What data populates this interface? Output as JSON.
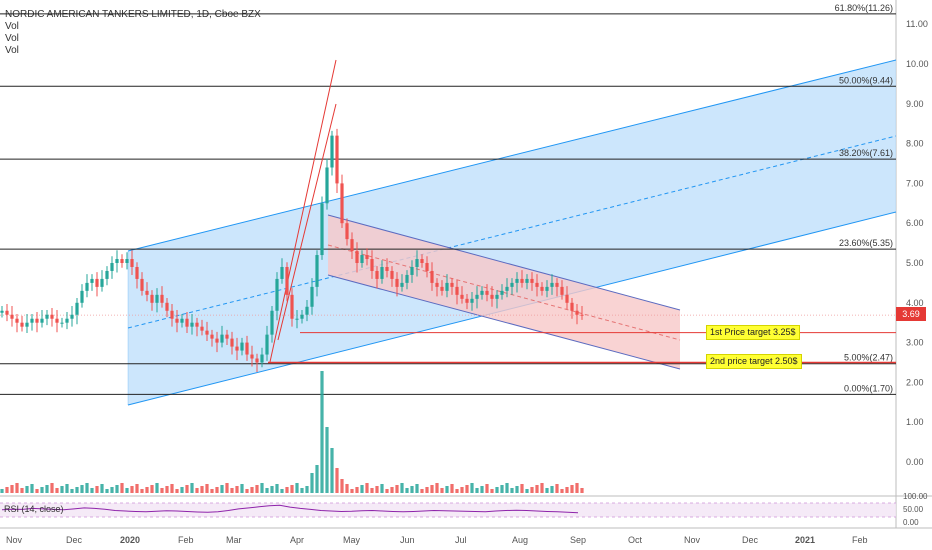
{
  "header": {
    "title": "NORDIC AMERICAN TANKERS LIMITED, 1D, Cboe BZX",
    "indicators": [
      "Vol",
      "Vol",
      "Vol"
    ]
  },
  "last_price": "3.69",
  "targets": {
    "first": "1st Price target 3.25$",
    "second": "2nd price target 2.50$"
  },
  "rsi": {
    "label": "RSI (14, close)",
    "axis_labels": [
      "100.00",
      "50.00",
      "0.00"
    ],
    "values": [
      55,
      57,
      56,
      60,
      58,
      56,
      55,
      58,
      62,
      60,
      57,
      52,
      50,
      48,
      47,
      49,
      51,
      50,
      48,
      46,
      45,
      47,
      52,
      58,
      62,
      66,
      70,
      72,
      65,
      60,
      56,
      52,
      50,
      48,
      49,
      51,
      52,
      50,
      48,
      47,
      48,
      50,
      52,
      51,
      50,
      49,
      48,
      47,
      50,
      52,
      53,
      52,
      50,
      48,
      47,
      45,
      43
    ]
  },
  "colors": {
    "up": "#26a69a",
    "down": "#ef5350",
    "channel_blue": "#2196f3",
    "channel_fill": "#bbdefb",
    "channel_red_fill": "#f8c8c8",
    "fib_line": "#222222",
    "target_line": "#e53935",
    "rsi_line": "#8e24aa"
  },
  "chart_data": {
    "type": "candlestick",
    "x_ticks": [
      "Nov",
      "Dec",
      "2020",
      "Feb",
      "Mar",
      "Apr",
      "May",
      "Jun",
      "Jul",
      "Aug",
      "Sep",
      "Oct",
      "Nov",
      "Dec",
      "2021",
      "Feb"
    ],
    "y_ticks": [
      11.0,
      10.0,
      9.0,
      8.0,
      7.0,
      6.0,
      5.0,
      4.0,
      3.0,
      2.0,
      1.0,
      0.0
    ],
    "y_tick_labels": [
      "11.00",
      "10.00",
      "9.00",
      "8.00",
      "7.00",
      "6.00",
      "5.00",
      "4.00",
      "3.00",
      "2.00",
      "1.00",
      "0.00"
    ],
    "fib_levels": [
      {
        "label": "61.80%(11.26)",
        "price": 11.26
      },
      {
        "label": "50.00%(9.44)",
        "price": 9.44
      },
      {
        "label": "38.20%(7.61)",
        "price": 7.61
      },
      {
        "label": "23.60%(5.35)",
        "price": 5.35
      },
      {
        "label": "5.00%(2.47)",
        "price": 2.47
      },
      {
        "label": "0.00%(1.70)",
        "price": 1.7
      }
    ],
    "target_prices": [
      3.25,
      2.5
    ],
    "closes": [
      3.8,
      3.7,
      3.6,
      3.5,
      3.4,
      3.5,
      3.6,
      3.5,
      3.6,
      3.7,
      3.6,
      3.5,
      3.5,
      3.6,
      3.7,
      4.0,
      4.3,
      4.5,
      4.6,
      4.4,
      4.6,
      4.8,
      5.0,
      5.1,
      5.0,
      5.1,
      4.9,
      4.6,
      4.3,
      4.2,
      4.0,
      4.2,
      4.0,
      3.8,
      3.6,
      3.5,
      3.6,
      3.4,
      3.5,
      3.4,
      3.3,
      3.2,
      3.1,
      3.0,
      3.2,
      3.1,
      2.9,
      2.8,
      3.0,
      2.7,
      2.6,
      2.5,
      2.7,
      3.2,
      3.8,
      4.6,
      4.9,
      4.2,
      3.6,
      3.6,
      3.7,
      3.9,
      4.4,
      5.2,
      6.5,
      7.4,
      8.2,
      7.0,
      6.0,
      5.6,
      5.3,
      5.0,
      5.2,
      5.1,
      4.8,
      4.6,
      4.9,
      4.8,
      4.6,
      4.4,
      4.5,
      4.7,
      4.9,
      5.1,
      5.0,
      4.8,
      4.5,
      4.4,
      4.3,
      4.5,
      4.4,
      4.2,
      4.1,
      4.0,
      4.1,
      4.2,
      4.3,
      4.2,
      4.1,
      4.2,
      4.3,
      4.4,
      4.5,
      4.6,
      4.5,
      4.6,
      4.5,
      4.4,
      4.3,
      4.4,
      4.5,
      4.4,
      4.2,
      4.0,
      3.8,
      3.7,
      3.69
    ]
  }
}
